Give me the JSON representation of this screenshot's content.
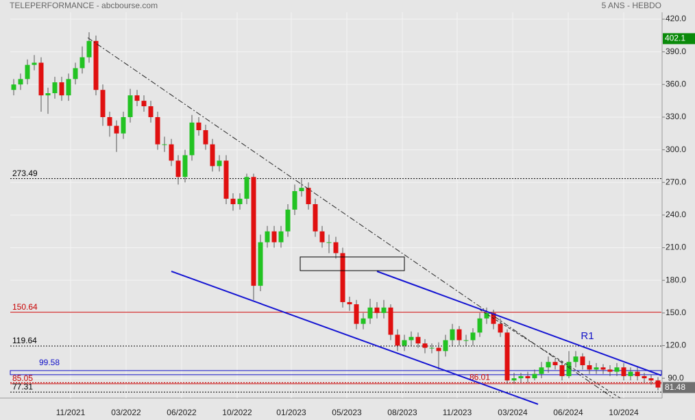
{
  "chart_data": {
    "type": "candlestick",
    "title": "TELEPERFORMANCE - abcbourse.com",
    "subtitle": "5 ANS - HEBDO",
    "up_color": "#22c322",
    "down_color": "#e01010",
    "grid": true,
    "ylim": [
      71.8,
      426.3
    ],
    "yticks": [
      {
        "value": 90,
        "label": "90.0"
      },
      {
        "value": 120,
        "label": "120.0"
      },
      {
        "value": 150,
        "label": "150.0"
      },
      {
        "value": 180,
        "label": "180.0"
      },
      {
        "value": 210,
        "label": "210.0"
      },
      {
        "value": 240,
        "label": "240.0"
      },
      {
        "value": 270,
        "label": "270.0"
      },
      {
        "value": 300,
        "label": "300.0"
      },
      {
        "value": 330,
        "label": "330.0"
      },
      {
        "value": 360,
        "label": "360.0"
      },
      {
        "value": 390,
        "label": "390.0"
      },
      {
        "value": 420,
        "label": "420.0"
      }
    ],
    "xlim": [
      0,
      95
    ],
    "xticks": [
      {
        "value": 8.8,
        "label": "11/2021"
      },
      {
        "value": 16.9,
        "label": "03/2022"
      },
      {
        "value": 25,
        "label": "06/2022"
      },
      {
        "value": 33.1,
        "label": "10/2022"
      },
      {
        "value": 41,
        "label": "01/2023"
      },
      {
        "value": 49.1,
        "label": "05/2023"
      },
      {
        "value": 57.2,
        "label": "08/2023"
      },
      {
        "value": 65.2,
        "label": "11/2023"
      },
      {
        "value": 73.3,
        "label": "03/2024"
      },
      {
        "value": 81.4,
        "label": "06/2024"
      },
      {
        "value": 89.5,
        "label": "10/2024"
      }
    ],
    "open": [
      355,
      360,
      365,
      378,
      380,
      350,
      352,
      362,
      350,
      365,
      375,
      385,
      400,
      355,
      330,
      322,
      315,
      330,
      350,
      345,
      340,
      330,
      305,
      305,
      290,
      275,
      295,
      325,
      318,
      305,
      285,
      290,
      255,
      250,
      255,
      275,
      175,
      215,
      225,
      215,
      225,
      245,
      262,
      265,
      250,
      225,
      215,
      215,
      205,
      160,
      158,
      140,
      145,
      155,
      150,
      155,
      130,
      120,
      125,
      128,
      122,
      118,
      118,
      115,
      125,
      135,
      125,
      125,
      132,
      145,
      150,
      140,
      132,
      88,
      90,
      92,
      90,
      94,
      100,
      105,
      102,
      92,
      105,
      110,
      102,
      98,
      100,
      98,
      96,
      100,
      92,
      96,
      92,
      90,
      88
    ],
    "high": [
      365,
      370,
      383,
      387,
      385,
      357,
      367,
      367,
      370,
      380,
      395,
      408,
      405,
      360,
      335,
      327,
      335,
      356,
      355,
      350,
      345,
      335,
      312,
      310,
      295,
      300,
      332,
      330,
      323,
      310,
      295,
      295,
      260,
      260,
      278,
      278,
      222,
      230,
      230,
      230,
      250,
      268,
      273,
      270,
      255,
      230,
      222,
      220,
      210,
      165,
      162,
      150,
      163,
      160,
      162,
      158,
      135,
      130,
      133,
      132,
      126,
      122,
      123,
      130,
      140,
      138,
      130,
      136,
      150,
      155,
      153,
      145,
      135,
      95,
      95,
      96,
      98,
      105,
      110,
      108,
      106,
      115,
      115,
      113,
      106,
      104,
      103,
      102,
      104,
      104,
      100,
      100,
      95,
      93,
      91
    ],
    "low": [
      350,
      355,
      360,
      373,
      335,
      333,
      347,
      345,
      345,
      360,
      370,
      380,
      350,
      322,
      312,
      298,
      310,
      325,
      340,
      335,
      325,
      300,
      298,
      285,
      268,
      270,
      290,
      313,
      300,
      280,
      280,
      250,
      244,
      245,
      250,
      162,
      170,
      210,
      210,
      210,
      220,
      240,
      257,
      245,
      220,
      210,
      205,
      200,
      155,
      152,
      135,
      135,
      140,
      145,
      145,
      125,
      115,
      115,
      120,
      118,
      113,
      113,
      98,
      110,
      120,
      120,
      120,
      120,
      128,
      140,
      135,
      128,
      85,
      85,
      86,
      86,
      88,
      90,
      95,
      98,
      88,
      90,
      100,
      98,
      94,
      94,
      94,
      92,
      92,
      88,
      88,
      88,
      86,
      84,
      79
    ],
    "close": [
      360,
      365,
      378,
      380,
      350,
      352,
      362,
      350,
      365,
      375,
      385,
      400,
      355,
      330,
      322,
      315,
      330,
      350,
      345,
      340,
      330,
      305,
      305,
      290,
      275,
      295,
      325,
      318,
      305,
      285,
      290,
      255,
      250,
      255,
      275,
      175,
      215,
      225,
      215,
      225,
      245,
      262,
      265,
      250,
      225,
      215,
      215,
      205,
      160,
      158,
      140,
      145,
      155,
      150,
      155,
      130,
      120,
      125,
      128,
      122,
      118,
      118,
      115,
      125,
      135,
      125,
      125,
      132,
      145,
      150,
      140,
      132,
      88,
      90,
      92,
      90,
      94,
      100,
      105,
      102,
      92,
      105,
      110,
      102,
      98,
      100,
      98,
      96,
      100,
      92,
      96,
      92,
      90,
      88,
      81.48
    ],
    "levels": [
      {
        "value": 273.49,
        "color": "#000000",
        "style": "dotted"
      },
      {
        "value": 150.64,
        "color": "#c80000",
        "style": "solid"
      },
      {
        "value": 119.64,
        "color": "#000000",
        "style": "dotted"
      },
      {
        "value": 99.58,
        "color": "#1010c8",
        "style": "band"
      },
      {
        "value": 85.05,
        "color": "#c80000",
        "style": "solid"
      },
      {
        "value": 77.31,
        "color": "#000000",
        "style": "dotted"
      },
      {
        "value": 86.01,
        "color": "#c80000",
        "style": "dotted"
      }
    ],
    "annotation": "R1",
    "price_tags": [
      {
        "value": 402.1,
        "color": "#0a8a0a"
      },
      {
        "value": 81.48,
        "color": "#707070"
      }
    ]
  }
}
